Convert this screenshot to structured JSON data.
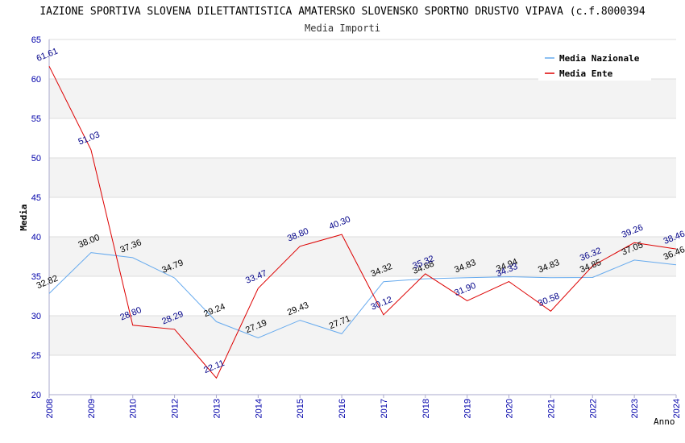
{
  "chart_data": {
    "type": "line",
    "title": "IAZIONE SPORTIVA SLOVENA DILETTANTISTICA AMATERSKO SLOVENSKO SPORTNO DRUSTVO VIPAVA (c.f.8000394",
    "subtitle": "Media Importi",
    "xlabel": "Anno",
    "ylabel": "Media",
    "ylim": [
      20,
      65
    ],
    "yticks": [
      "20",
      "25",
      "30",
      "35",
      "40",
      "45",
      "50",
      "55",
      "60",
      "65"
    ],
    "categories": [
      "2008",
      "2009",
      "2010",
      "2012",
      "2013",
      "2014",
      "2015",
      "2016",
      "2017",
      "2018",
      "2019",
      "2020",
      "2021",
      "2022",
      "2023",
      "2024"
    ],
    "legend_position": "top-right",
    "grid": "horizontal",
    "series": [
      {
        "name": "Media Nazionale",
        "color": "#66aaee",
        "label_color": "#000000",
        "values": [
          32.82,
          38.0,
          37.36,
          34.79,
          29.24,
          27.19,
          29.43,
          27.71,
          34.32,
          34.68,
          34.83,
          34.94,
          34.83,
          34.85,
          37.05,
          36.46
        ],
        "labels": [
          "32.82",
          "38.00",
          "37.36",
          "34.79",
          "29.24",
          "27.19",
          "29.43",
          "27.71",
          "34.32",
          "34.68",
          "34.83",
          "34.94",
          "34.83",
          "34.85",
          "37.05",
          "36.46"
        ]
      },
      {
        "name": "Media Ente",
        "color": "#dd0000",
        "label_color": "#000088",
        "values": [
          61.61,
          51.03,
          28.8,
          28.29,
          22.11,
          33.47,
          38.8,
          40.3,
          30.12,
          35.32,
          31.9,
          34.33,
          30.58,
          36.32,
          39.26,
          38.46
        ],
        "labels": [
          "61.61",
          "51.03",
          "28.80",
          "28.29",
          "22.11",
          "33.47",
          "38.80",
          "40.30",
          "30.12",
          "35.32",
          "31.90",
          "34.33",
          "30.58",
          "36.32",
          "39.26",
          "38.46"
        ]
      }
    ]
  }
}
